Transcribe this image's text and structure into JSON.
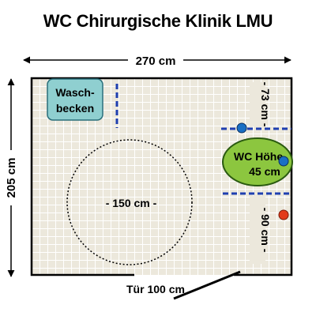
{
  "title": "WC Chirurgische Klinik LMU",
  "dimensions": {
    "width_label": "270 cm",
    "height_label": "205 cm",
    "door_label": "Tür 100 cm",
    "turning_circle_label": "- 150 cm -",
    "toilet_to_wall_top_label": "- 73 cm -",
    "toilet_to_wall_bottom_label": "- 90 cm -"
  },
  "fixtures": {
    "sink_line1": "Wasch-",
    "sink_line2": "becken",
    "toilet_line1": "WC Höhe",
    "toilet_line2": "45 cm"
  },
  "colors": {
    "floor": "#ece8dc",
    "grid": "#ffffff",
    "wall": "#000000",
    "sink": "#8fcfd0",
    "toilet": "#8cc63f",
    "grab_bar": "#1f3fb0",
    "blue_marker": "#1a6fc4",
    "red_marker": "#e23a1a"
  }
}
